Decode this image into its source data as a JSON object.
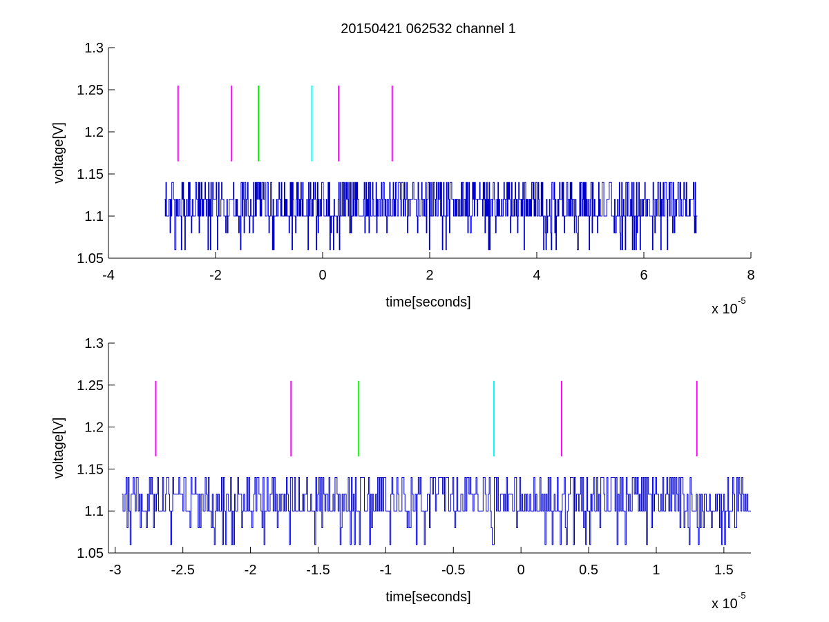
{
  "figure": {
    "title": "20150421 062532 channel 1"
  },
  "chart_data": [
    {
      "type": "line",
      "title": "20150421 062532 channel 1",
      "xlabel": "time[seconds]",
      "ylabel": "voltage[V]",
      "x_multiplier_label": "x 10",
      "x_multiplier_exponent": "-5",
      "xlim": [
        -4,
        8
      ],
      "ylim": [
        1.05,
        1.3
      ],
      "x_ticks": [
        -4,
        -2,
        0,
        2,
        4,
        6,
        8
      ],
      "x_tick_labels": [
        "-4",
        "-2",
        "0",
        "2",
        "4",
        "6",
        "8"
      ],
      "y_ticks": [
        1.05,
        1.1,
        1.15,
        1.2,
        1.25,
        1.3
      ],
      "y_tick_labels": [
        "1.05",
        "1.1",
        "1.15",
        "1.2",
        "1.25",
        "1.3"
      ],
      "grid": false,
      "signal": {
        "color": "#0000cc",
        "x_range": [
          -2.95,
          7.0
        ],
        "levels": [
          1.06,
          1.08,
          1.1,
          1.12,
          1.14
        ],
        "baseline": 1.1
      },
      "markers": [
        {
          "x": -2.7,
          "y": [
            1.165,
            1.255
          ],
          "color": "#ff00ff"
        },
        {
          "x": -1.7,
          "y": [
            1.165,
            1.255
          ],
          "color": "#ff00ff"
        },
        {
          "x": -1.2,
          "y": [
            1.165,
            1.255
          ],
          "color": "#00ff00"
        },
        {
          "x": -0.2,
          "y": [
            1.165,
            1.255
          ],
          "color": "#00ffff"
        },
        {
          "x": 0.3,
          "y": [
            1.165,
            1.255
          ],
          "color": "#ff00ff"
        },
        {
          "x": 1.3,
          "y": [
            1.165,
            1.255
          ],
          "color": "#ff00ff"
        }
      ]
    },
    {
      "type": "line",
      "title": "",
      "xlabel": "time[seconds]",
      "ylabel": "voltage[V]",
      "x_multiplier_label": "x 10",
      "x_multiplier_exponent": "-5",
      "xlim": [
        -3.05,
        1.7
      ],
      "ylim": [
        1.05,
        1.3
      ],
      "x_ticks": [
        -3,
        -2.5,
        -2,
        -1.5,
        -1,
        -0.5,
        0,
        0.5,
        1,
        1.5
      ],
      "x_tick_labels": [
        "-3",
        "-2.5",
        "-2",
        "-1.5",
        "-1",
        "-0.5",
        "0",
        "0.5",
        "1",
        "1.5"
      ],
      "y_ticks": [
        1.05,
        1.1,
        1.15,
        1.2,
        1.25,
        1.3
      ],
      "y_tick_labels": [
        "1.05",
        "1.1",
        "1.15",
        "1.2",
        "1.25",
        "1.3"
      ],
      "grid": false,
      "signal": {
        "color": "#0000cc",
        "x_range": [
          -2.95,
          1.7
        ],
        "levels": [
          1.06,
          1.08,
          1.1,
          1.12,
          1.14
        ],
        "baseline": 1.1
      },
      "markers": [
        {
          "x": -2.7,
          "y": [
            1.165,
            1.255
          ],
          "color": "#ff00ff"
        },
        {
          "x": -1.7,
          "y": [
            1.165,
            1.255
          ],
          "color": "#ff00ff"
        },
        {
          "x": -1.2,
          "y": [
            1.165,
            1.255
          ],
          "color": "#00ff00"
        },
        {
          "x": -0.2,
          "y": [
            1.165,
            1.255
          ],
          "color": "#00ffff"
        },
        {
          "x": 0.3,
          "y": [
            1.165,
            1.255
          ],
          "color": "#ff00ff"
        },
        {
          "x": 1.3,
          "y": [
            1.165,
            1.255
          ],
          "color": "#ff00ff"
        }
      ]
    }
  ]
}
